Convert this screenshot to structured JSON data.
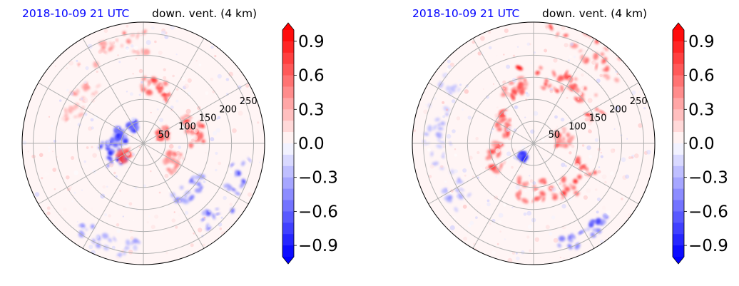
{
  "chart_data": [
    {
      "type": "heatmap",
      "projection": "polar",
      "title_left": "2018-10-09 21 UTC",
      "title_right": "down. vent. (4 km)",
      "radial_ticks": [
        "50",
        "100",
        "150",
        "200",
        "250"
      ],
      "radial_tick_values": [
        50,
        100,
        150,
        200,
        250
      ],
      "r_max": 275,
      "angular_grid_deg": 30,
      "grid": true,
      "colormap": "bwr",
      "clim": [
        -1.0,
        1.0
      ],
      "colorbar": {
        "ticks": [
          "0.9",
          "0.6",
          "0.3",
          "0.0",
          "−0.3",
          "−0.6",
          "−0.9"
        ],
        "tick_values": [
          0.9,
          0.6,
          0.3,
          0.0,
          -0.3,
          -0.6,
          -0.9
        ],
        "extend": "both",
        "levels": 20
      },
      "features": [
        {
          "angle": 198,
          "r": 75,
          "value": -1.0,
          "spread": 35
        },
        {
          "angle": 160,
          "r": 55,
          "value": -0.9,
          "spread": 22
        },
        {
          "angle": 120,
          "r": 45,
          "value": -0.8,
          "spread": 15
        },
        {
          "angle": 210,
          "r": 50,
          "value": 0.9,
          "spread": 20
        },
        {
          "angle": 75,
          "r": 130,
          "value": 0.9,
          "spread": 25
        },
        {
          "angle": 15,
          "r": 120,
          "value": 0.9,
          "spread": 30
        },
        {
          "angle": 25,
          "r": 50,
          "value": 0.8,
          "spread": 20
        },
        {
          "angle": 330,
          "r": 80,
          "value": 0.7,
          "spread": 25
        },
        {
          "angle": 110,
          "r": 230,
          "value": 0.6,
          "spread": 35
        },
        {
          "angle": 315,
          "r": 150,
          "value": -0.6,
          "spread": 25
        },
        {
          "angle": 330,
          "r": 230,
          "value": -0.7,
          "spread": 35
        },
        {
          "angle": 145,
          "r": 175,
          "value": 0.5,
          "spread": 30
        },
        {
          "angle": 250,
          "r": 240,
          "value": -0.5,
          "spread": 30
        }
      ]
    },
    {
      "type": "heatmap",
      "projection": "polar",
      "title_left": "2018-10-09 21 UTC",
      "title_right": "down. vent. (4 km)",
      "radial_ticks": [
        "50",
        "100",
        "150",
        "200",
        "250"
      ],
      "radial_tick_values": [
        50,
        100,
        150,
        200,
        250
      ],
      "r_max": 275,
      "angular_grid_deg": 30,
      "grid": true,
      "colormap": "bwr",
      "clim": [
        -1.0,
        1.0
      ],
      "colorbar": {
        "ticks": [
          "0.9",
          "0.6",
          "0.3",
          "0.0",
          "−0.3",
          "−0.6",
          "−0.9"
        ],
        "tick_values": [
          0.9,
          0.6,
          0.3,
          0.0,
          -0.3,
          -0.6,
          -0.9
        ],
        "extend": "both",
        "levels": 20
      },
      "features": [
        {
          "angle": 80,
          "r": 150,
          "value": 1.0,
          "spread": 40
        },
        {
          "angle": 45,
          "r": 160,
          "value": 0.9,
          "spread": 35
        },
        {
          "angle": 110,
          "r": 130,
          "value": 0.9,
          "spread": 30
        },
        {
          "angle": 150,
          "r": 80,
          "value": 0.9,
          "spread": 30
        },
        {
          "angle": 200,
          "r": 90,
          "value": 0.8,
          "spread": 30
        },
        {
          "angle": 270,
          "r": 110,
          "value": 0.8,
          "spread": 35
        },
        {
          "angle": 320,
          "r": 130,
          "value": 0.8,
          "spread": 35
        },
        {
          "angle": 10,
          "r": 70,
          "value": 0.7,
          "spread": 25
        },
        {
          "angle": 60,
          "r": 250,
          "value": 0.8,
          "spread": 40
        },
        {
          "angle": 230,
          "r": 40,
          "value": -0.9,
          "spread": 15
        },
        {
          "angle": 300,
          "r": 240,
          "value": -0.8,
          "spread": 25
        },
        {
          "angle": 160,
          "r": 230,
          "value": -0.4,
          "spread": 35
        },
        {
          "angle": 200,
          "r": 210,
          "value": -0.4,
          "spread": 35
        }
      ]
    }
  ]
}
